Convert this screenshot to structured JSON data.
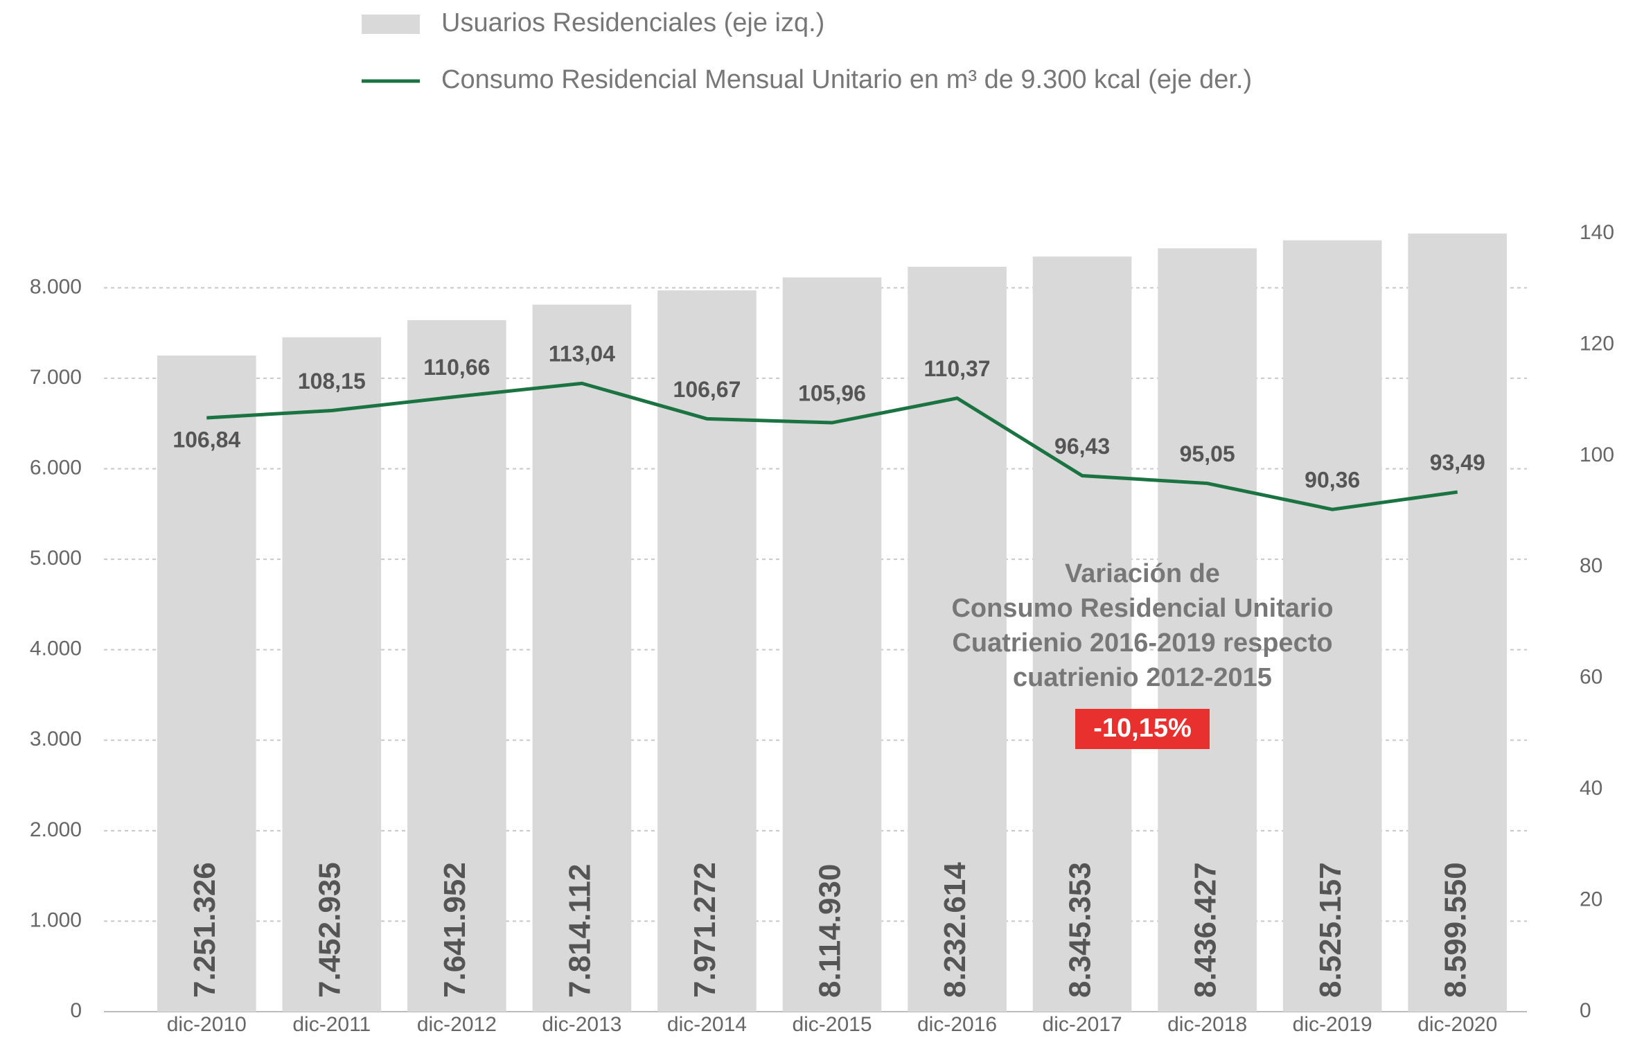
{
  "chart_data": {
    "type": "bar_line",
    "categories": [
      "dic-2010",
      "dic-2011",
      "dic-2012",
      "dic-2013",
      "dic-2014",
      "dic-2015",
      "dic-2016",
      "dic-2017",
      "dic-2018",
      "dic-2019",
      "dic-2020"
    ],
    "series": [
      {
        "name": "Usuarios Residenciales (eje izq.)",
        "type": "bar",
        "color": "#d9d9d9",
        "values": [
          7251.326,
          7452.935,
          7641.952,
          7814.112,
          7971.272,
          8114.93,
          8232.614,
          8345.353,
          8436.427,
          8525.157,
          8599.55
        ],
        "value_labels": [
          "7.251.326",
          "7.452.935",
          "7.641.952",
          "7.814.112",
          "7.971.272",
          "8.114.930",
          "8.232.614",
          "8.345.353",
          "8.436.427",
          "8.525.157",
          "8.599.550"
        ]
      },
      {
        "name": "Consumo Residencial Mensual Unitario en m³ de 9.300 kcal (eje der.)",
        "type": "line",
        "axis": "y2",
        "color": "#1a7340",
        "values": [
          106.84,
          108.15,
          110.66,
          113.04,
          106.67,
          105.96,
          110.37,
          96.43,
          95.05,
          90.36,
          93.49
        ],
        "value_labels": [
          "106,84",
          "108,15",
          "110,66",
          "113,04",
          "106,67",
          "105,96",
          "110,37",
          "96,43",
          "95,05",
          "90,36",
          "93,49"
        ]
      }
    ],
    "ylim": [
      0,
      8600
    ],
    "yticks": [
      0,
      {
        "value": 1000,
        "label": "1.000"
      },
      {
        "value": 2000,
        "label": "2.000"
      },
      {
        "value": 3000,
        "label": "3.000"
      },
      {
        "value": 4000,
        "label": "4.000"
      },
      {
        "value": 5000,
        "label": "5.000"
      },
      {
        "value": 6000,
        "label": "6.000"
      },
      {
        "value": 7000,
        "label": "7.000"
      },
      {
        "value": 8000,
        "label": "8.000"
      }
    ],
    "y2lim": [
      0,
      140
    ],
    "y2ticks": [
      0,
      20,
      40,
      60,
      80,
      100,
      120,
      140
    ],
    "grid": true,
    "legend": "top",
    "annotation": {
      "lines": [
        "Variación de",
        "Consumo Residencial Unitario",
        "Cuatrienio 2016-2019 respecto",
        "cuatrienio 2012-2015"
      ],
      "badge": "-10,15%",
      "badge_color": "#e8302e"
    }
  }
}
